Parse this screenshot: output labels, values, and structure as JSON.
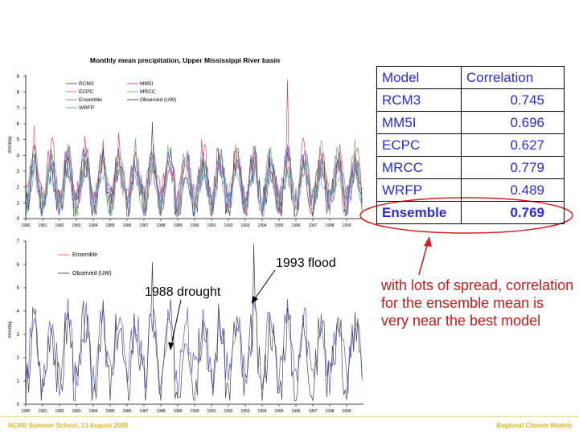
{
  "colors": {
    "accent_blue": "#2a2ad0",
    "note_red": "#c41a1a",
    "footer_gold": "#e2b420",
    "ellipse_red": "#d42020"
  },
  "table": {
    "header": {
      "model": "Model",
      "correlation": "Correlation"
    },
    "rows": [
      {
        "model": "RCM3",
        "corr": "0.745"
      },
      {
        "model": "MM5I",
        "corr": "0.696"
      },
      {
        "model": "ECPC",
        "corr": "0.627"
      },
      {
        "model": "MRCC",
        "corr": "0.779"
      },
      {
        "model": "WRFP",
        "corr": "0.489"
      },
      {
        "model": "Ensemble",
        "corr": "0.769"
      }
    ]
  },
  "note": "with lots of spread, correlation for the ensemble mean is very near the best model",
  "footer": {
    "left": "NCAR Summer School, 13 August 2008",
    "right": "Regional Climate Models"
  },
  "chart_data": [
    {
      "type": "line",
      "title": "Monthly mean precipitation, Upper Mississippi River basin",
      "xlabel": "",
      "ylabel": "mm/day",
      "ylim": [
        0,
        9
      ],
      "yticks": [
        "0",
        "1",
        "2",
        "3",
        "4",
        "5",
        "6",
        "7",
        "8",
        "9"
      ],
      "x_categories": [
        "1980",
        "1981",
        "1982",
        "1983",
        "1984",
        "1985",
        "1986",
        "1987",
        "1988",
        "1989",
        "1990",
        "1991",
        "1992",
        "1993",
        "1994",
        "1995",
        "1996",
        "1997",
        "1998",
        "1999"
      ],
      "grid": false,
      "legend_position": "top-left",
      "series": [
        {
          "name": "RCM3",
          "color": "#4e4e9c",
          "mean": 2.3,
          "amplitude": 1.4,
          "seed": 11
        },
        {
          "name": "MM5I",
          "color": "#d44a7a",
          "mean": 2.6,
          "amplitude": 1.6,
          "seed": 23
        },
        {
          "name": "ECPC",
          "color": "#e07070",
          "mean": 2.2,
          "amplitude": 1.2,
          "seed": 37
        },
        {
          "name": "MRCC",
          "color": "#6fbf6f",
          "mean": 2.4,
          "amplitude": 1.5,
          "seed": 41
        },
        {
          "name": "Ensemble",
          "color": "#8080e0",
          "mean": 2.4,
          "amplitude": 1.3,
          "seed": 53
        },
        {
          "name": "Observed (UW)",
          "color": "#505050",
          "mean": 2.1,
          "amplitude": 1.5,
          "seed": 67
        },
        {
          "name": "WRFP",
          "color": "#6a9ad0",
          "mean": 1.9,
          "amplitude": 1.0,
          "seed": 79
        }
      ],
      "peaks": [
        {
          "series": "MM5I",
          "year_index": 15,
          "value": 8.8
        },
        {
          "series": "Observed (UW)",
          "year_index": 7,
          "value": 6.1
        },
        {
          "series": "ECPC",
          "year_index": 0,
          "value": 5.9
        }
      ]
    },
    {
      "type": "line",
      "title": "",
      "xlabel": "",
      "ylabel": "mm/day",
      "ylim": [
        0,
        7
      ],
      "yticks": [
        "0",
        "1",
        "2",
        "3",
        "4",
        "5",
        "6",
        "7"
      ],
      "x_categories": [
        "1980",
        "1981",
        "1982",
        "1983",
        "1984",
        "1985",
        "1986",
        "1987",
        "1988",
        "1989",
        "1990",
        "1991",
        "1992",
        "1993",
        "1994",
        "1995",
        "1996",
        "1997",
        "1998",
        "1999"
      ],
      "grid": false,
      "legend_position": "top-left",
      "series": [
        {
          "name": "Ensemble",
          "color": "#5a5ae0",
          "mean": 2.4,
          "amplitude": 1.2,
          "seed": 53
        },
        {
          "name": "Observed (UW)",
          "color": "#444444",
          "mean": 2.1,
          "amplitude": 1.5,
          "seed": 67
        }
      ],
      "peaks": [
        {
          "series": "Observed (UW)",
          "year_index": 13,
          "value": 6.9
        },
        {
          "series": "Observed (UW)",
          "year_index": 7,
          "value": 6.1
        }
      ],
      "annotations": [
        {
          "text": "1993 flood",
          "year_index": 13
        },
        {
          "text": "1988 drought",
          "year_index": 8
        }
      ]
    }
  ]
}
